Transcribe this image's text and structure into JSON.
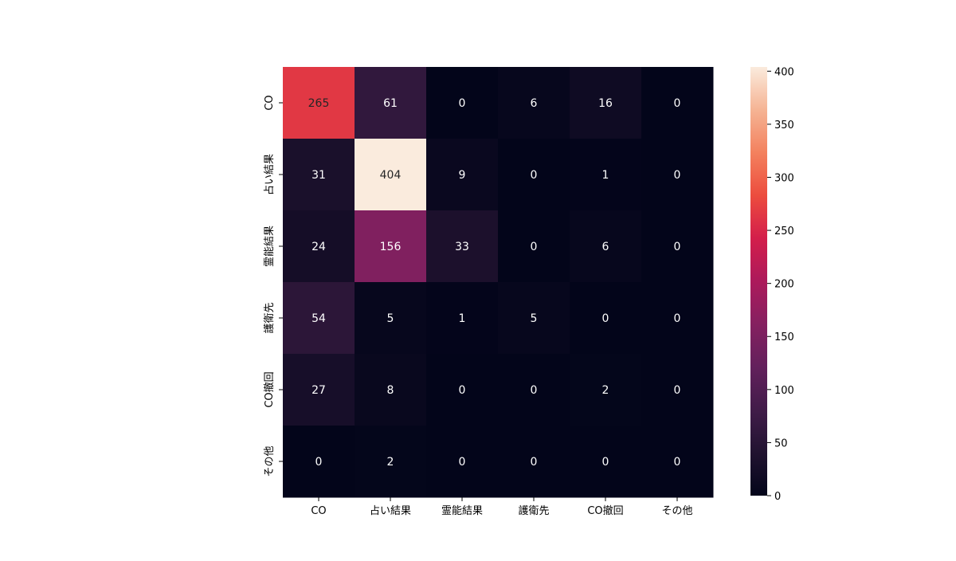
{
  "chart_data": {
    "type": "heatmap",
    "title": "",
    "xlabel": "",
    "ylabel": "",
    "x_categories": [
      "CO",
      "占い結果",
      "霊能結果",
      "護衛先",
      "CO撤回",
      "その他"
    ],
    "y_categories": [
      "CO",
      "占い結果",
      "霊能結果",
      "護衛先",
      "CO撤回",
      "その他"
    ],
    "values": [
      [
        265,
        61,
        0,
        6,
        16,
        0
      ],
      [
        31,
        404,
        9,
        0,
        1,
        0
      ],
      [
        24,
        156,
        33,
        0,
        6,
        0
      ],
      [
        54,
        5,
        1,
        5,
        0,
        0
      ],
      [
        27,
        8,
        0,
        0,
        2,
        0
      ],
      [
        0,
        2,
        0,
        0,
        0,
        0
      ]
    ],
    "colorbar": {
      "min": 0,
      "max": 404,
      "ticks": [
        0,
        50,
        100,
        150,
        200,
        250,
        300,
        350,
        400
      ],
      "colormap": "rocket"
    }
  }
}
